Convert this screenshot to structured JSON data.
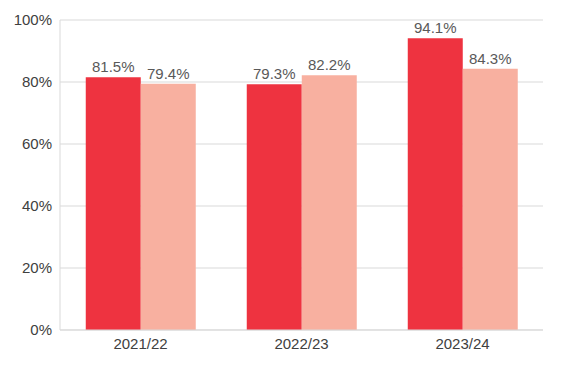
{
  "chart_data": {
    "type": "bar",
    "categories": [
      "2021/22",
      "2022/23",
      "2023/24"
    ],
    "series": [
      {
        "color": "#ee3340",
        "values": [
          81.5,
          79.3,
          94.1
        ],
        "value_labels": [
          "81.5%",
          "79.3%",
          "94.1%"
        ]
      },
      {
        "color": "#f8b0a0",
        "values": [
          79.4,
          82.2,
          84.3
        ],
        "value_labels": [
          "79.4%",
          "82.2%",
          "84.3%"
        ]
      }
    ],
    "ylim": [
      0,
      100
    ],
    "yticks": [
      {
        "value": 0,
        "label": "0%"
      },
      {
        "value": 20,
        "label": "20%"
      },
      {
        "value": 40,
        "label": "40%"
      },
      {
        "value": 60,
        "label": "60%"
      },
      {
        "value": 80,
        "label": "80%"
      },
      {
        "value": 100,
        "label": "100%"
      }
    ],
    "grid": true,
    "data_labels": true
  }
}
